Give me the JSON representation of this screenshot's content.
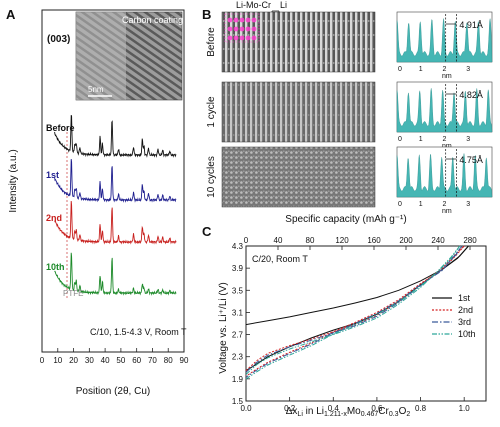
{
  "panel_labels": {
    "a": "A",
    "b": "B",
    "c": "C"
  },
  "panel_a": {
    "ylabel": "Intensity (a.u.)",
    "xlabel": "Position (2θ, Cu)",
    "peak_label": "(003)",
    "inset_title": "Carbon coating",
    "inset_scale": "5nm",
    "conditions": "C/10, 1.5-4.3 V, Room T",
    "ptfe_label": "PTFE",
    "xticks": [
      "0",
      "10",
      "20",
      "30",
      "40",
      "50",
      "60",
      "70",
      "80",
      "90"
    ],
    "traces": [
      {
        "label": "Before",
        "color": "#111111"
      },
      {
        "label": "1st",
        "color": "#1f1f8f"
      },
      {
        "label": "2nd",
        "color": "#c8201e"
      },
      {
        "label": "10th",
        "color": "#1d8a2a"
      }
    ]
  },
  "panel_b": {
    "top_labels": {
      "limocr": "Li-Mo-Cr",
      "li": "Li"
    },
    "rows": [
      {
        "label": "Before",
        "spacing": "4.91Å"
      },
      {
        "label": "1 cycle",
        "spacing": "4.82Å"
      },
      {
        "label": "10 cycles",
        "spacing": "4.75Å"
      }
    ],
    "profile_xticks": [
      "0",
      "1",
      "2",
      "3"
    ],
    "profile_xlabel": "nm",
    "profile_color": "#45b6b4"
  },
  "chart_data": {
    "type": "line",
    "title": "C/20, Room T",
    "xlabel": "Δx_Li in Li_1.211-x Mo_0.467 Cr_0.3 O_2",
    "x2label": "Specific capacity (mAh g⁻¹)",
    "ylabel": "Voltage vs. Li⁺/Li (V)",
    "xlim": [
      0.0,
      1.1
    ],
    "x2lim": [
      0,
      300
    ],
    "ylim": [
      1.5,
      4.3
    ],
    "xticks": [
      "0.0",
      "0.2",
      "0.4",
      "0.6",
      "0.8",
      "1.0"
    ],
    "x2ticks": [
      "0",
      "40",
      "80",
      "120",
      "160",
      "200",
      "240",
      "280"
    ],
    "yticks": [
      "1.5",
      "1.9",
      "2.3",
      "2.7",
      "3.1",
      "3.5",
      "3.9",
      "4.3"
    ],
    "legend_position": "right",
    "series": [
      {
        "name": "1st",
        "color": "#111111",
        "charge": [
          [
            0.0,
            2.88
          ],
          [
            0.1,
            2.95
          ],
          [
            0.2,
            3.02
          ],
          [
            0.3,
            3.1
          ],
          [
            0.4,
            3.18
          ],
          [
            0.5,
            3.27
          ],
          [
            0.6,
            3.37
          ],
          [
            0.7,
            3.5
          ],
          [
            0.8,
            3.67
          ],
          [
            0.9,
            3.88
          ],
          [
            0.97,
            4.08
          ],
          [
            1.02,
            4.3
          ]
        ],
        "discharge": [
          [
            1.02,
            4.3
          ],
          [
            0.98,
            4.12
          ],
          [
            0.9,
            3.88
          ],
          [
            0.8,
            3.6
          ],
          [
            0.7,
            3.3
          ],
          [
            0.6,
            3.07
          ],
          [
            0.5,
            2.9
          ],
          [
            0.4,
            2.78
          ],
          [
            0.3,
            2.64
          ],
          [
            0.2,
            2.48
          ],
          [
            0.1,
            2.3
          ],
          [
            0.03,
            2.12
          ],
          [
            0.0,
            2.05
          ]
        ]
      },
      {
        "name": "2nd",
        "color": "#d42020",
        "charge": [
          [
            0.0,
            2.05
          ],
          [
            0.05,
            2.23
          ],
          [
            0.1,
            2.36
          ],
          [
            0.2,
            2.5
          ],
          [
            0.3,
            2.62
          ],
          [
            0.4,
            2.75
          ],
          [
            0.5,
            2.88
          ],
          [
            0.6,
            3.05
          ],
          [
            0.7,
            3.3
          ],
          [
            0.8,
            3.6
          ],
          [
            0.9,
            3.9
          ],
          [
            0.96,
            4.15
          ],
          [
            1.0,
            4.3
          ]
        ],
        "discharge": [
          [
            1.0,
            4.3
          ],
          [
            0.96,
            4.12
          ],
          [
            0.9,
            3.88
          ],
          [
            0.8,
            3.62
          ],
          [
            0.7,
            3.33
          ],
          [
            0.6,
            3.1
          ],
          [
            0.5,
            2.92
          ],
          [
            0.4,
            2.75
          ],
          [
            0.3,
            2.55
          ],
          [
            0.2,
            2.38
          ],
          [
            0.1,
            2.2
          ],
          [
            0.05,
            2.08
          ],
          [
            0.0,
            1.95
          ]
        ]
      },
      {
        "name": "3rd",
        "color": "#3a5a9a",
        "charge": [
          [
            0.0,
            2.02
          ],
          [
            0.05,
            2.2
          ],
          [
            0.1,
            2.33
          ],
          [
            0.2,
            2.48
          ],
          [
            0.3,
            2.6
          ],
          [
            0.4,
            2.73
          ],
          [
            0.5,
            2.86
          ],
          [
            0.6,
            3.03
          ],
          [
            0.7,
            3.28
          ],
          [
            0.8,
            3.58
          ],
          [
            0.9,
            3.88
          ],
          [
            0.96,
            4.13
          ],
          [
            0.99,
            4.3
          ]
        ],
        "discharge": [
          [
            0.99,
            4.3
          ],
          [
            0.95,
            4.1
          ],
          [
            0.9,
            3.86
          ],
          [
            0.8,
            3.6
          ],
          [
            0.7,
            3.31
          ],
          [
            0.6,
            3.08
          ],
          [
            0.5,
            2.9
          ],
          [
            0.4,
            2.73
          ],
          [
            0.3,
            2.53
          ],
          [
            0.2,
            2.36
          ],
          [
            0.1,
            2.18
          ],
          [
            0.05,
            2.06
          ],
          [
            0.0,
            1.93
          ]
        ]
      },
      {
        "name": "10th",
        "color": "#2fa89a",
        "charge": [
          [
            0.0,
            1.98
          ],
          [
            0.05,
            2.16
          ],
          [
            0.1,
            2.28
          ],
          [
            0.2,
            2.44
          ],
          [
            0.3,
            2.57
          ],
          [
            0.4,
            2.7
          ],
          [
            0.5,
            2.84
          ],
          [
            0.6,
            3.0
          ],
          [
            0.7,
            3.25
          ],
          [
            0.8,
            3.55
          ],
          [
            0.88,
            3.85
          ],
          [
            0.94,
            4.1
          ],
          [
            0.98,
            4.3
          ]
        ],
        "discharge": [
          [
            0.98,
            4.3
          ],
          [
            0.94,
            4.08
          ],
          [
            0.88,
            3.84
          ],
          [
            0.8,
            3.58
          ],
          [
            0.7,
            3.29
          ],
          [
            0.6,
            3.06
          ],
          [
            0.5,
            2.88
          ],
          [
            0.4,
            2.71
          ],
          [
            0.3,
            2.5
          ],
          [
            0.2,
            2.33
          ],
          [
            0.1,
            2.15
          ],
          [
            0.05,
            2.03
          ],
          [
            0.0,
            1.9
          ]
        ]
      }
    ]
  }
}
